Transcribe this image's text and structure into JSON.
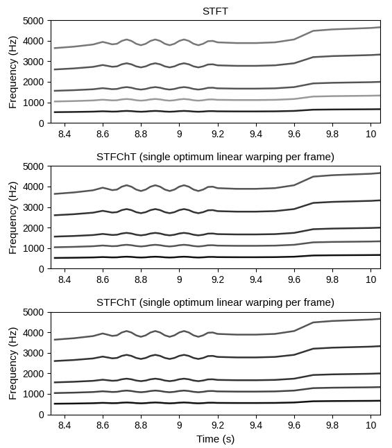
{
  "chart_data": [
    {
      "type": "line",
      "title": "STFT",
      "y_label": "Frequency (Hz)",
      "x": [
        8.35,
        8.45,
        8.55,
        8.6,
        8.625,
        8.65,
        8.675,
        8.7,
        8.725,
        8.75,
        8.775,
        8.8,
        8.825,
        8.85,
        8.875,
        8.9,
        8.925,
        8.95,
        8.975,
        9.0,
        9.025,
        9.05,
        9.075,
        9.1,
        9.125,
        9.15,
        9.175,
        9.2,
        9.3,
        9.4,
        9.5,
        9.6,
        9.65,
        9.7,
        9.8,
        9.9,
        10.0,
        10.05
      ],
      "series": [
        {
          "color": "#222222",
          "values": [
            520,
            530,
            545,
            563,
            555,
            546,
            550,
            570,
            580,
            570,
            550,
            540,
            550,
            570,
            580,
            570,
            550,
            540,
            550,
            570,
            580,
            570,
            550,
            540,
            550,
            568,
            570,
            560,
            555,
            555,
            560,
            580,
            610,
            640,
            650,
            655,
            660,
            665
          ]
        },
        {
          "color": "#999999",
          "values": [
            1040,
            1060,
            1090,
            1126,
            1110,
            1092,
            1100,
            1140,
            1160,
            1140,
            1100,
            1080,
            1100,
            1140,
            1160,
            1140,
            1100,
            1080,
            1100,
            1140,
            1160,
            1140,
            1100,
            1080,
            1100,
            1136,
            1140,
            1120,
            1110,
            1110,
            1120,
            1160,
            1220,
            1280,
            1300,
            1310,
            1320,
            1330
          ]
        },
        {
          "color": "#555555",
          "values": [
            1560,
            1590,
            1635,
            1689,
            1665,
            1638,
            1650,
            1710,
            1740,
            1710,
            1650,
            1620,
            1650,
            1710,
            1740,
            1710,
            1650,
            1620,
            1650,
            1710,
            1740,
            1710,
            1650,
            1620,
            1650,
            1704,
            1710,
            1680,
            1665,
            1665,
            1680,
            1740,
            1830,
            1920,
            1950,
            1965,
            1980,
            1995
          ]
        },
        {
          "color": "#555555",
          "values": [
            2600,
            2650,
            2725,
            2815,
            2775,
            2730,
            2750,
            2850,
            2900,
            2850,
            2750,
            2700,
            2750,
            2850,
            2900,
            2850,
            2750,
            2700,
            2750,
            2850,
            2900,
            2850,
            2750,
            2700,
            2750,
            2840,
            2850,
            2800,
            2775,
            2775,
            2800,
            2900,
            3050,
            3200,
            3250,
            3275,
            3300,
            3325
          ]
        },
        {
          "color": "#777777",
          "values": [
            3640,
            3710,
            3815,
            3941,
            3885,
            3822,
            3850,
            3990,
            4060,
            3990,
            3850,
            3780,
            3850,
            3990,
            4060,
            3990,
            3850,
            3780,
            3850,
            3990,
            4060,
            3990,
            3850,
            3780,
            3850,
            3976,
            3990,
            3920,
            3885,
            3885,
            3920,
            4060,
            4270,
            4480,
            4550,
            4585,
            4620,
            4655
          ]
        }
      ],
      "xlim": [
        8.33,
        10.05
      ],
      "xticks": [
        8.4,
        8.6,
        8.8,
        9,
        9.2,
        9.4,
        9.6,
        9.8,
        10
      ],
      "ylim": [
        0,
        5000
      ],
      "yticks": [
        0,
        1000,
        2000,
        3000,
        4000,
        5000
      ]
    },
    {
      "type": "line",
      "title": "STFChT (single optimum linear warping per frame)",
      "y_label": "Frequency (Hz)",
      "x": [
        8.35,
        8.45,
        8.55,
        8.6,
        8.625,
        8.65,
        8.675,
        8.7,
        8.725,
        8.75,
        8.775,
        8.8,
        8.825,
        8.85,
        8.875,
        8.9,
        8.925,
        8.95,
        8.975,
        9.0,
        9.025,
        9.05,
        9.075,
        9.1,
        9.125,
        9.15,
        9.175,
        9.2,
        9.3,
        9.4,
        9.5,
        9.6,
        9.65,
        9.7,
        9.8,
        9.9,
        10.0,
        10.05
      ],
      "series": [
        {
          "color": "#111111",
          "values": [
            520,
            530,
            545,
            563,
            555,
            546,
            550,
            570,
            580,
            570,
            550,
            540,
            550,
            570,
            580,
            570,
            550,
            540,
            550,
            570,
            580,
            570,
            550,
            540,
            550,
            568,
            570,
            560,
            555,
            555,
            560,
            580,
            610,
            640,
            650,
            655,
            660,
            665
          ]
        },
        {
          "color": "#555555",
          "values": [
            1040,
            1060,
            1090,
            1126,
            1110,
            1092,
            1100,
            1140,
            1160,
            1140,
            1100,
            1080,
            1100,
            1140,
            1160,
            1140,
            1100,
            1080,
            1100,
            1140,
            1160,
            1140,
            1100,
            1080,
            1100,
            1136,
            1140,
            1120,
            1110,
            1110,
            1120,
            1160,
            1220,
            1280,
            1300,
            1310,
            1320,
            1330
          ]
        },
        {
          "color": "#333333",
          "values": [
            1560,
            1590,
            1635,
            1689,
            1665,
            1638,
            1650,
            1710,
            1740,
            1710,
            1650,
            1620,
            1650,
            1710,
            1740,
            1710,
            1650,
            1620,
            1650,
            1710,
            1740,
            1710,
            1650,
            1620,
            1650,
            1704,
            1710,
            1680,
            1665,
            1665,
            1680,
            1740,
            1830,
            1920,
            1950,
            1965,
            1980,
            1995
          ]
        },
        {
          "color": "#333333",
          "values": [
            2600,
            2650,
            2725,
            2815,
            2775,
            2730,
            2750,
            2850,
            2900,
            2850,
            2750,
            2700,
            2750,
            2850,
            2900,
            2850,
            2750,
            2700,
            2750,
            2850,
            2900,
            2850,
            2750,
            2700,
            2750,
            2840,
            2850,
            2800,
            2775,
            2775,
            2800,
            2900,
            3050,
            3200,
            3250,
            3275,
            3300,
            3325
          ]
        },
        {
          "color": "#555555",
          "values": [
            3640,
            3710,
            3815,
            3941,
            3885,
            3822,
            3850,
            3990,
            4060,
            3990,
            3850,
            3780,
            3850,
            3990,
            4060,
            3990,
            3850,
            3780,
            3850,
            3990,
            4060,
            3990,
            3850,
            3780,
            3850,
            3976,
            3990,
            3920,
            3885,
            3885,
            3920,
            4060,
            4270,
            4480,
            4550,
            4585,
            4620,
            4655
          ]
        }
      ],
      "xlim": [
        8.33,
        10.05
      ],
      "xticks": [
        8.4,
        8.6,
        8.8,
        9,
        9.2,
        9.4,
        9.6,
        9.8,
        10
      ],
      "ylim": [
        0,
        5000
      ],
      "yticks": [
        0,
        1000,
        2000,
        3000,
        4000,
        5000
      ]
    },
    {
      "type": "line",
      "title": "STFChT (single optimum linear warping per frame)",
      "y_label": "Frequency (Hz)",
      "x_label": "Time (s)",
      "x": [
        8.35,
        8.45,
        8.55,
        8.6,
        8.625,
        8.65,
        8.675,
        8.7,
        8.725,
        8.75,
        8.775,
        8.8,
        8.825,
        8.85,
        8.875,
        8.9,
        8.925,
        8.95,
        8.975,
        9.0,
        9.025,
        9.05,
        9.075,
        9.1,
        9.125,
        9.15,
        9.175,
        9.2,
        9.3,
        9.4,
        9.5,
        9.6,
        9.65,
        9.7,
        9.8,
        9.9,
        10.0,
        10.05
      ],
      "series": [
        {
          "color": "#111111",
          "values": [
            520,
            530,
            545,
            563,
            555,
            546,
            550,
            570,
            580,
            570,
            550,
            540,
            550,
            570,
            580,
            570,
            550,
            540,
            550,
            570,
            580,
            570,
            550,
            540,
            550,
            568,
            570,
            560,
            555,
            555,
            560,
            580,
            610,
            640,
            650,
            655,
            660,
            665
          ]
        },
        {
          "color": "#444444",
          "values": [
            1040,
            1060,
            1090,
            1126,
            1110,
            1092,
            1100,
            1140,
            1160,
            1140,
            1100,
            1080,
            1100,
            1140,
            1160,
            1140,
            1100,
            1080,
            1100,
            1140,
            1160,
            1140,
            1100,
            1080,
            1100,
            1136,
            1140,
            1120,
            1110,
            1110,
            1120,
            1160,
            1220,
            1280,
            1300,
            1310,
            1320,
            1330
          ]
        },
        {
          "color": "#333333",
          "values": [
            1560,
            1590,
            1635,
            1689,
            1665,
            1638,
            1650,
            1710,
            1740,
            1710,
            1650,
            1620,
            1650,
            1710,
            1740,
            1710,
            1650,
            1620,
            1650,
            1710,
            1740,
            1710,
            1650,
            1620,
            1650,
            1704,
            1710,
            1680,
            1665,
            1665,
            1680,
            1740,
            1830,
            1920,
            1950,
            1965,
            1980,
            1995
          ]
        },
        {
          "color": "#333333",
          "values": [
            2600,
            2650,
            2725,
            2815,
            2775,
            2730,
            2750,
            2850,
            2900,
            2850,
            2750,
            2700,
            2750,
            2850,
            2900,
            2850,
            2750,
            2700,
            2750,
            2850,
            2900,
            2850,
            2750,
            2700,
            2750,
            2840,
            2850,
            2800,
            2775,
            2775,
            2800,
            2900,
            3050,
            3200,
            3250,
            3275,
            3300,
            3325
          ]
        },
        {
          "color": "#555555",
          "values": [
            3640,
            3710,
            3815,
            3941,
            3885,
            3822,
            3850,
            3990,
            4060,
            3990,
            3850,
            3780,
            3850,
            3990,
            4060,
            3990,
            3850,
            3780,
            3850,
            3990,
            4060,
            3990,
            3850,
            3780,
            3850,
            3976,
            3990,
            3920,
            3885,
            3885,
            3920,
            4060,
            4270,
            4480,
            4550,
            4585,
            4620,
            4655
          ]
        }
      ],
      "xlim": [
        8.33,
        10.05
      ],
      "xticks": [
        8.4,
        8.6,
        8.8,
        9,
        9.2,
        9.4,
        9.6,
        9.8,
        10
      ],
      "ylim": [
        0,
        5000
      ],
      "yticks": [
        0,
        1000,
        2000,
        3000,
        4000,
        5000
      ]
    }
  ]
}
